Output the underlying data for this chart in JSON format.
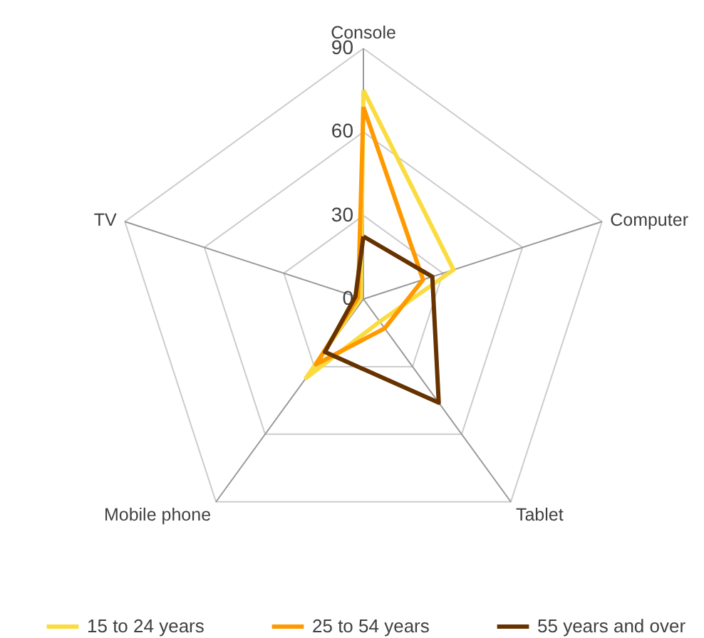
{
  "chart_data": {
    "type": "radar",
    "categories": [
      "Console",
      "Computer",
      "Tablet",
      "Mobile phone",
      "TV"
    ],
    "ylim": [
      0,
      90
    ],
    "yticks": [
      0,
      30,
      60,
      90
    ],
    "grid": true,
    "legend": "bottom",
    "series": [
      {
        "name": "15 to 24 years",
        "color": "#fadc41",
        "values": [
          75,
          34,
          10,
          35,
          1
        ]
      },
      {
        "name": "25 to 54 years",
        "color": "#ff9900",
        "values": [
          69,
          22.5,
          13,
          29,
          2
        ]
      },
      {
        "name": "55 years and over",
        "color": "#663300",
        "values": [
          22.5,
          26,
          46,
          23.5,
          3
        ]
      }
    ]
  }
}
